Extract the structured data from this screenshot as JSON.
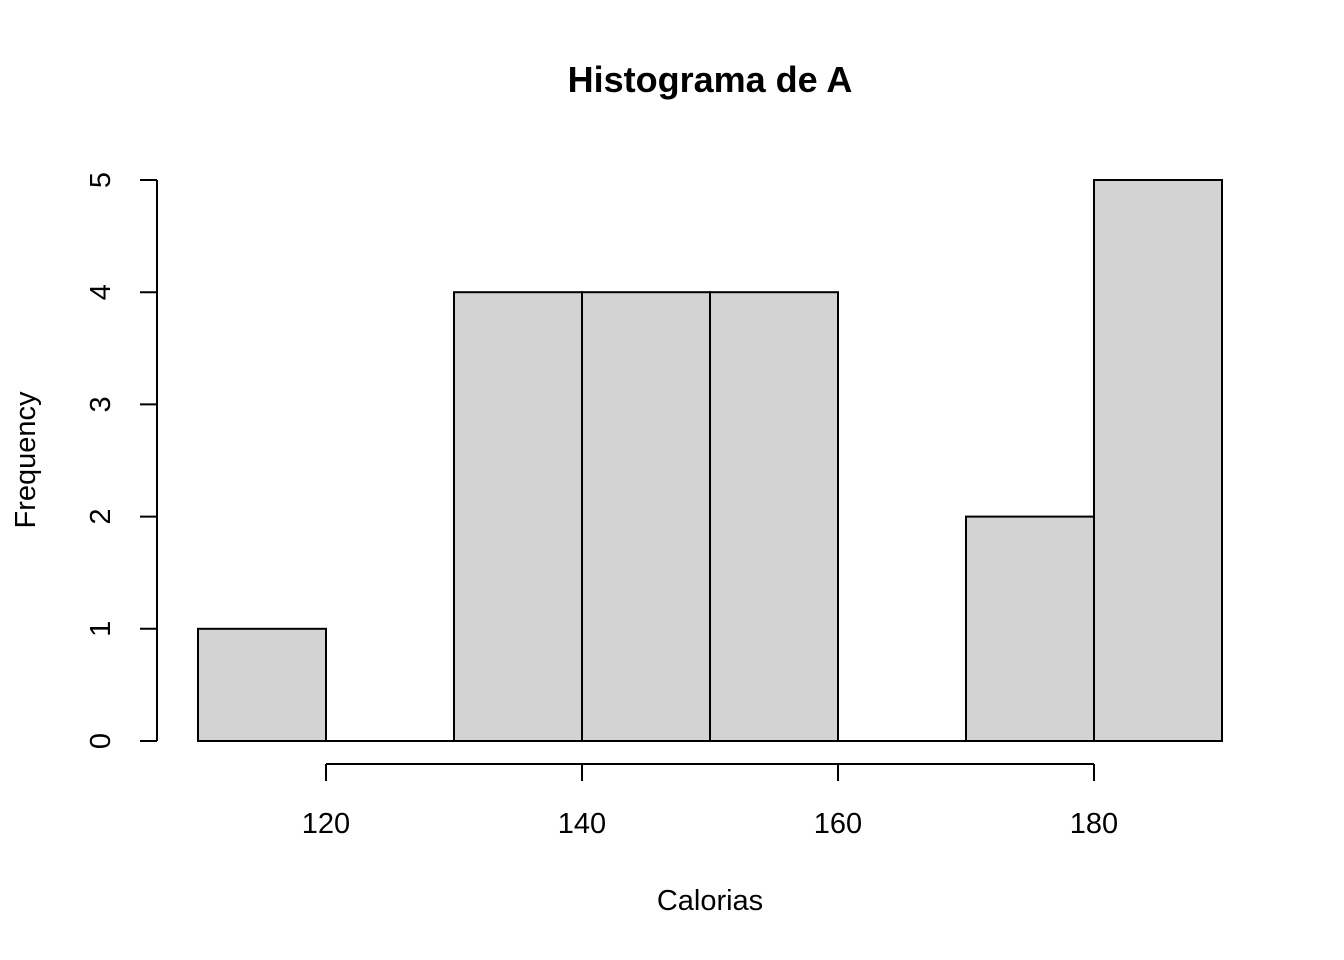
{
  "chart_data": {
    "type": "bar",
    "title": "Histograma de A",
    "xlabel": "Calorias",
    "ylabel": "Frequency",
    "bins": [
      {
        "start": 110,
        "end": 120,
        "count": 1
      },
      {
        "start": 120,
        "end": 130,
        "count": 0
      },
      {
        "start": 130,
        "end": 140,
        "count": 4
      },
      {
        "start": 140,
        "end": 150,
        "count": 4
      },
      {
        "start": 150,
        "end": 160,
        "count": 4
      },
      {
        "start": 160,
        "end": 170,
        "count": 0
      },
      {
        "start": 170,
        "end": 180,
        "count": 2
      },
      {
        "start": 180,
        "end": 190,
        "count": 5
      }
    ],
    "x_ticks": [
      120,
      140,
      160,
      180
    ],
    "y_ticks": [
      0,
      1,
      2,
      3,
      4,
      5
    ],
    "xlim": [
      110,
      190
    ],
    "ylim": [
      0,
      5
    ],
    "grid": false,
    "bar_color": "#d3d3d3",
    "edge_color": "#000000"
  }
}
